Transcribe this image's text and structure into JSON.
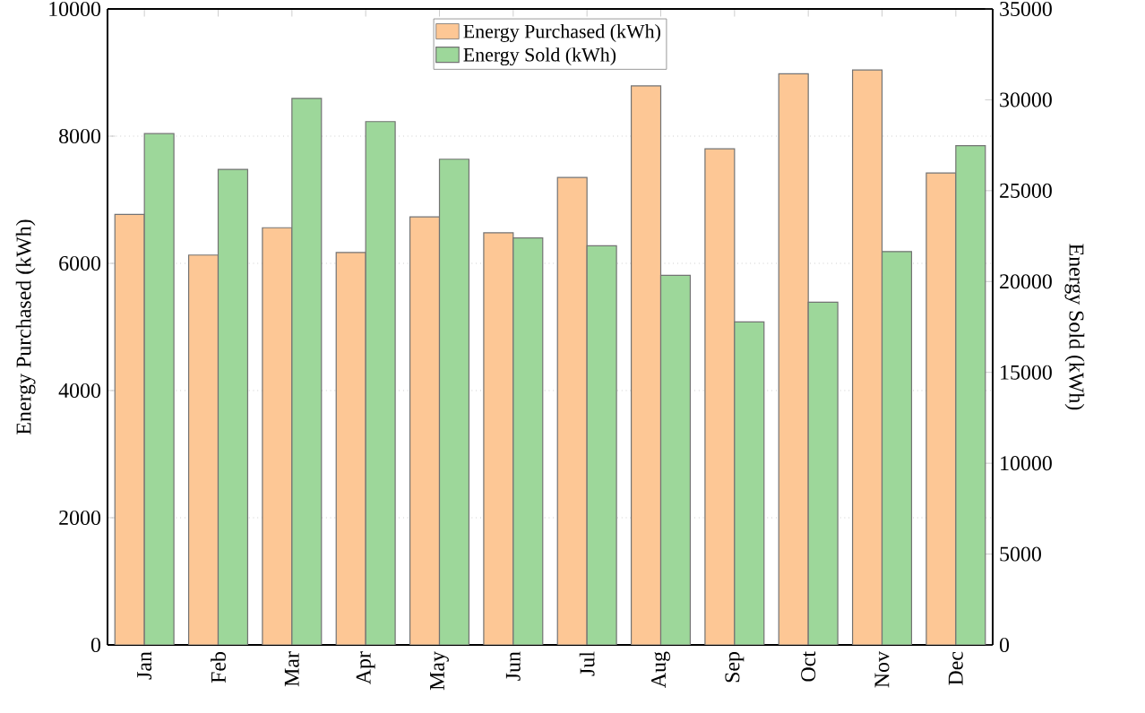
{
  "chart_data": {
    "type": "bar",
    "ylabel": "Energy Purchased (kWh)",
    "y2label": "Energy Sold (kWh)",
    "categories": [
      "Jan",
      "Feb",
      "Mar",
      "Apr",
      "May",
      "Jun",
      "Jul",
      "Aug",
      "Sep",
      "Oct",
      "Nov",
      "Dec"
    ],
    "series": [
      {
        "name": "Energy Purchased (kWh)",
        "color": "#fdc795",
        "values": [
          6770,
          6130,
          6560,
          6170,
          6730,
          6480,
          7350,
          8790,
          7800,
          8980,
          9040,
          7420
        ]
      },
      {
        "name": "Energy Sold (kWh)",
        "color": "#9dd79a",
        "axis": "y2",
        "values": [
          28140,
          26170,
          30080,
          28800,
          26730,
          22400,
          21970,
          20340,
          17780,
          18860,
          21650,
          27480
        ]
      }
    ],
    "ylim": [
      0,
      10000
    ],
    "yticks": [
      0,
      2000,
      4000,
      6000,
      8000,
      10000
    ],
    "y2lim": [
      0,
      35000
    ],
    "y2ticks": [
      0,
      5000,
      10000,
      15000,
      20000,
      25000,
      30000,
      35000
    ],
    "grid": "y",
    "legend": "top"
  }
}
